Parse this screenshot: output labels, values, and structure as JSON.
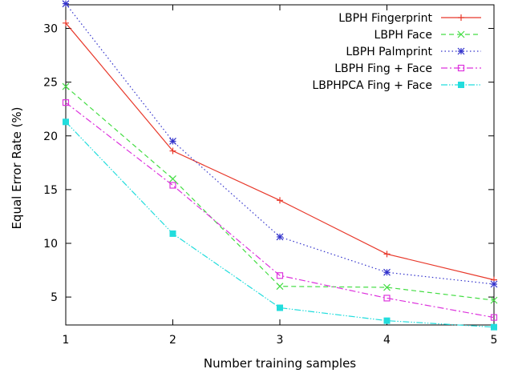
{
  "chart_data": {
    "type": "line",
    "title": "",
    "xlabel": "Number training samples",
    "ylabel": "Equal Error Rate (%)",
    "x": [
      1,
      2,
      3,
      4,
      5
    ],
    "xlim": [
      1,
      5
    ],
    "ylim": [
      2.4,
      32.2
    ],
    "xticks": [
      1,
      2,
      3,
      4,
      5
    ],
    "yticks": [
      5,
      10,
      15,
      20,
      25,
      30
    ],
    "grid": false,
    "legend_position": "top-right",
    "series": [
      {
        "name": "LBPH Fingerprint",
        "values": [
          30.5,
          18.6,
          14.0,
          9.0,
          6.6
        ],
        "color": "#e8382a",
        "marker": "plus",
        "dash": ""
      },
      {
        "name": "LBPH Face",
        "values": [
          24.6,
          16.0,
          6.0,
          5.9,
          4.7
        ],
        "color": "#44dd44",
        "marker": "cross",
        "dash": "6,4"
      },
      {
        "name": "LBPH Palmprint",
        "values": [
          32.3,
          19.5,
          10.6,
          7.3,
          6.2
        ],
        "color": "#3333cc",
        "marker": "star",
        "dash": "1.5,3"
      },
      {
        "name": "LBPH Fing + Face",
        "values": [
          23.1,
          15.4,
          7.0,
          4.9,
          3.1
        ],
        "color": "#dd33dd",
        "marker": "open-square",
        "dash": "8,3,2,3"
      },
      {
        "name": "LBPHPCA Fing + Face",
        "values": [
          21.3,
          10.9,
          4.0,
          2.8,
          2.2
        ],
        "color": "#22dddd",
        "marker": "filled-square",
        "dash": "8,2,1.5,2,1.5,2"
      }
    ]
  }
}
